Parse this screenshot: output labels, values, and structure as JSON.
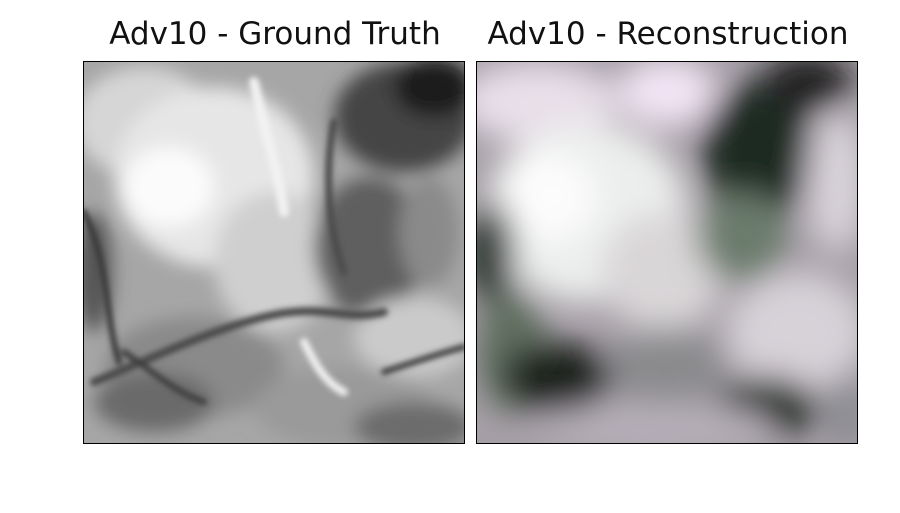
{
  "panels": [
    {
      "title": "Adv10 - Ground Truth",
      "image": {
        "content": "grayscale terrain patch",
        "colors": [
          "#ffffff",
          "#b8b8b8",
          "#6e6e6e",
          "#1e1e1e"
        ]
      }
    },
    {
      "title": "Adv10 - Reconstruction",
      "image": {
        "content": "blurred color reconstruction of terrain patch",
        "colors": [
          "#f4f2f1",
          "#e8d6e8",
          "#7c857c",
          "#0e2a14"
        ]
      }
    }
  ]
}
